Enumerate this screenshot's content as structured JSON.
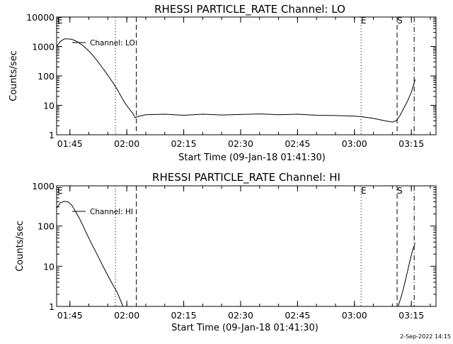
{
  "footer": {
    "timestamp": "2-Sep-2022 14:15"
  },
  "chart_data": [
    {
      "type": "line",
      "title": "RHESSI PARTICLE_RATE Channel: LO",
      "xlabel": "Start Time (09-Jan-18 01:41:30)",
      "ylabel": "Counts/sec",
      "yscale": "log",
      "ylim": [
        1,
        10000
      ],
      "xlim": [
        "01:41:30",
        "03:21:30"
      ],
      "x_ticks": [
        "01:45",
        "02:00",
        "02:15",
        "02:30",
        "02:45",
        "03:00",
        "03:15"
      ],
      "y_ticks": [
        "1",
        "10",
        "100",
        "1000",
        "10000"
      ],
      "legend": "Channel: LO",
      "markers": {
        "E_left": "E",
        "E_right": "E",
        "S": "S"
      },
      "vlines": [
        {
          "time": "01:57:00",
          "style": "dotted"
        },
        {
          "time": "02:02:30",
          "style": "dashed"
        },
        {
          "time": "03:01:45",
          "style": "dotted"
        },
        {
          "time": "03:11:15",
          "style": "dashed"
        },
        {
          "time": "03:15:45",
          "style": "dashdot"
        }
      ],
      "series": [
        {
          "x": [
            "01:41:30",
            "01:42:30",
            "01:43:30",
            "01:44:30",
            "01:45:30",
            "01:46:30",
            "01:47:30",
            "01:48:30",
            "01:49:30",
            "01:50:30",
            "01:51:30",
            "01:52:30",
            "01:53:30",
            "01:54:30",
            "01:55:30",
            "01:56:30",
            "01:57:30",
            "01:58:30",
            "01:59:30",
            "02:00:30",
            "02:01:30",
            "02:02:10",
            "02:03:00",
            "02:05:00",
            "02:10:00",
            "02:15:00",
            "02:20:00",
            "02:25:00",
            "02:30:00",
            "02:35:00",
            "02:40:00",
            "02:45:00",
            "02:50:00",
            "02:55:00",
            "03:00:00",
            "03:02:00",
            "03:05:00",
            "03:08:00",
            "03:10:00",
            "03:11:00",
            "03:12:00",
            "03:13:00",
            "03:14:00",
            "03:15:00",
            "03:16:00"
          ],
          "y": [
            1000,
            1500,
            1800,
            1800,
            1750,
            1550,
            1300,
            1050,
            800,
            600,
            420,
            290,
            195,
            130,
            85,
            55,
            34,
            20,
            12,
            8,
            5.5,
            3.8,
            4.2,
            4.8,
            5.0,
            4.6,
            5.0,
            4.7,
            4.9,
            5.1,
            4.8,
            5.0,
            4.6,
            4.5,
            4.3,
            4.1,
            3.6,
            3.0,
            2.7,
            3.0,
            4.5,
            8,
            14,
            28,
            75
          ]
        }
      ]
    },
    {
      "type": "line",
      "title": "RHESSI PARTICLE_RATE Channel: HI",
      "xlabel": "Start Time (09-Jan-18 01:41:30)",
      "ylabel": "Counts/sec",
      "yscale": "log",
      "ylim": [
        1,
        1000
      ],
      "xlim": [
        "01:41:30",
        "03:21:30"
      ],
      "x_ticks": [
        "01:45",
        "02:00",
        "02:15",
        "02:30",
        "02:45",
        "03:00",
        "03:15"
      ],
      "y_ticks": [
        "1",
        "10",
        "100",
        "1000"
      ],
      "legend": "Channel: HI",
      "markers": {
        "E_left": "E",
        "E_right": "E",
        "S": "S"
      },
      "vlines": [
        {
          "time": "01:57:00",
          "style": "dotted"
        },
        {
          "time": "02:02:30",
          "style": "dashed"
        },
        {
          "time": "03:01:45",
          "style": "dotted"
        },
        {
          "time": "03:11:15",
          "style": "dashed"
        },
        {
          "time": "03:15:45",
          "style": "dashdot"
        }
      ],
      "series": [
        {
          "x": [
            "01:41:30",
            "01:42:30",
            "01:43:30",
            "01:44:30",
            "01:45:30",
            "01:46:30",
            "01:47:30",
            "01:48:30",
            "01:49:30",
            "01:50:30",
            "01:51:30",
            "01:52:30",
            "01:53:30",
            "01:54:30",
            "01:55:30",
            "01:56:30",
            "01:57:30",
            "01:58:00",
            "01:58:30",
            "01:59:00"
          ],
          "y": [
            280,
            380,
            410,
            400,
            330,
            230,
            155,
            100,
            62,
            40,
            26,
            17,
            11,
            7.2,
            4.8,
            3.2,
            2.2,
            1.7,
            1.3,
            1.0
          ]
        },
        {
          "x": [
            "03:11:30",
            "03:12:00",
            "03:12:30",
            "03:13:00",
            "03:13:30",
            "03:14:00",
            "03:14:30",
            "03:15:00",
            "03:15:30",
            "03:16:00"
          ],
          "y": [
            1.0,
            1.4,
            2.0,
            3.0,
            4.7,
            7.5,
            12,
            19,
            28,
            38
          ]
        }
      ]
    }
  ]
}
